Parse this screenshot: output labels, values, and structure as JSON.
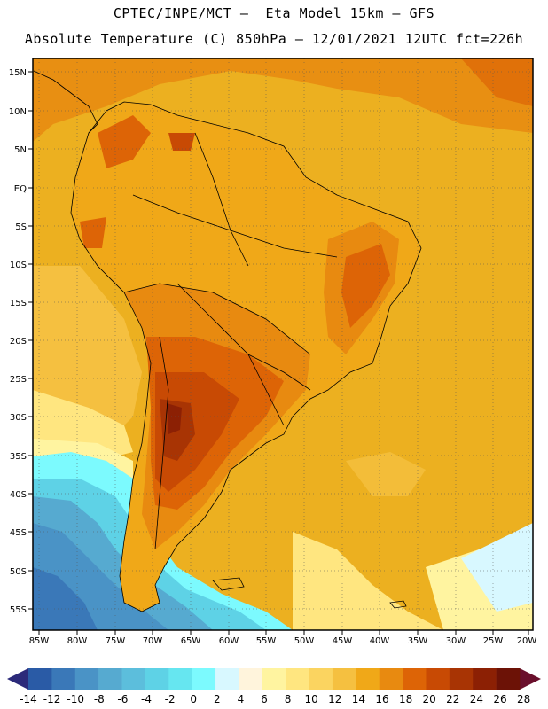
{
  "header": {
    "line1": "CPTEC/INPE/MCT –  Eta Model 15km – GFS",
    "line2": "Absolute Temperature (C) 850hPa – 12/01/2021 12UTC fct=226h"
  },
  "map": {
    "lat_ticks": [
      "15N",
      "10N",
      "5N",
      "EQ",
      "5S",
      "10S",
      "15S",
      "20S",
      "25S",
      "30S",
      "35S",
      "40S",
      "45S",
      "50S",
      "55S"
    ],
    "lon_ticks": [
      "85W",
      "80W",
      "75W",
      "70W",
      "65W",
      "60W",
      "55W",
      "50W",
      "45W",
      "40W",
      "35W",
      "30W",
      "25W",
      "20W"
    ]
  },
  "colorbar": {
    "labels": [
      "-14",
      "-12",
      "-10",
      "-8",
      "-6",
      "-4",
      "-2",
      "0",
      "2",
      "4",
      "6",
      "8",
      "10",
      "12",
      "14",
      "16",
      "18",
      "20",
      "22",
      "24",
      "26",
      "28"
    ],
    "colors": [
      "#1a3c8c",
      "#2a5ba6",
      "#3a78b8",
      "#4a93c6",
      "#56aad0",
      "#5cbedc",
      "#5ed2e6",
      "#66e6f0",
      "#7cfafe",
      "#d8f8ff",
      "#fff4dc",
      "#fff4a0",
      "#ffe680",
      "#fbd460",
      "#f5c040",
      "#f0a818",
      "#e88a10",
      "#dd6406",
      "#c84a04",
      "#a83404",
      "#8c2004",
      "#6c1206"
    ],
    "low_arrow_color": "#2c2a7a",
    "high_arrow_color": "#6a0f2c"
  },
  "colors": {
    "ocean_base": "#ecb020",
    "land_base": "#f0a818",
    "coast": "#000000"
  }
}
